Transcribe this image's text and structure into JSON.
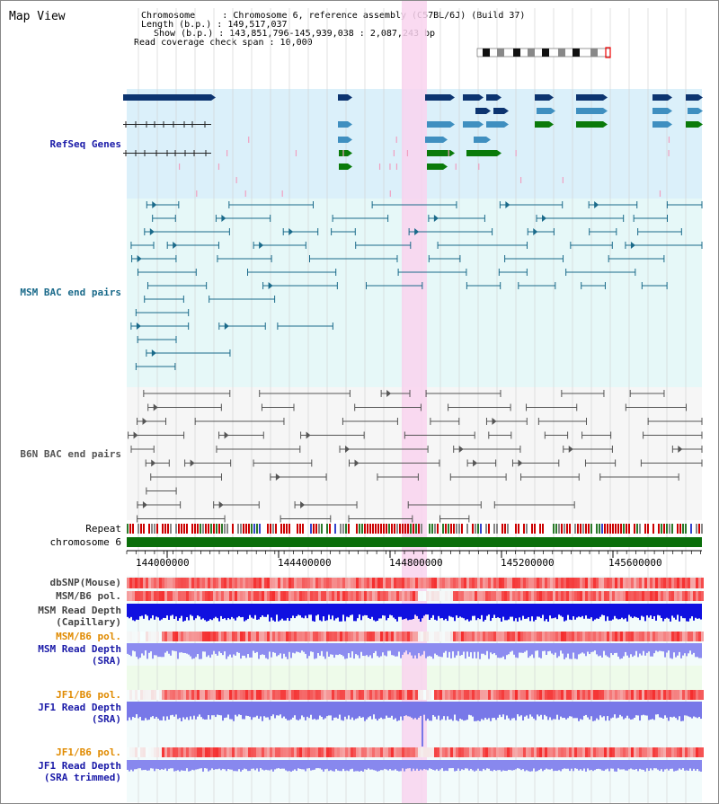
{
  "header": {
    "title": "Map View",
    "info_lines": [
      "Chromosome     : Chromosome 6, reference assembly (C57BL/6J) (Build 37)",
      "Length (b.p.) : 149,517,037",
      "Show (b.p.) : 143,851,796-145,939,038 : 2,087,243 bp",
      "Read coverage check span : 10,000"
    ]
  },
  "tracks": {
    "refseq": {
      "label": "RefSeq Genes",
      "color": "#1a1aa8"
    },
    "msm_bac": {
      "label": "MSM BAC end pairs",
      "color": "#1a6a8a"
    },
    "b6n_bac": {
      "label": "B6N BAC end pairs",
      "color": "#555555"
    },
    "repeat": {
      "label": "Repeat"
    },
    "chrom": {
      "label": "chromosome 6"
    },
    "dbsnp": {
      "label": "dbSNP(Mouse)"
    },
    "msm_pol": {
      "label": "MSM/B6 pol."
    },
    "msm_depth_cap": {
      "label": "MSM Read Depth",
      "sub": "(Capillary)"
    },
    "msm_pol2": {
      "label": "MSM/B6 pol."
    },
    "msm_depth_sra": {
      "label": "MSM Read Depth",
      "sub": "(SRA)"
    },
    "jf1_pol": {
      "label": "JF1/B6 pol."
    },
    "jf1_depth_sra": {
      "label": "JF1 Read Depth",
      "sub": "(SRA)"
    },
    "jf1_pol2": {
      "label": "JF1/B6 pol."
    },
    "jf1_depth_trim": {
      "label": "JF1 Read Depth",
      "sub": "(SRA trimmed)"
    }
  },
  "axis": {
    "ticks": [
      "144000000",
      "144400000",
      "144800000",
      "145200000",
      "145600000"
    ]
  },
  "colors": {
    "highlight": "#f9d4ee",
    "refseq_bg": "#dbf0fa",
    "msm_bg": "#e6f8f8",
    "b6n_bg": "#f6f6f6",
    "chrom_bar": "#0a6e0a",
    "dark_blue": "#0c3470",
    "mid_blue": "#3f8fc0",
    "green": "#0a7a0a",
    "pink": "#f0a0c0",
    "label_orange": "#e08a00",
    "label_blue": "#1a1aa8",
    "label_gray": "#444444"
  }
}
